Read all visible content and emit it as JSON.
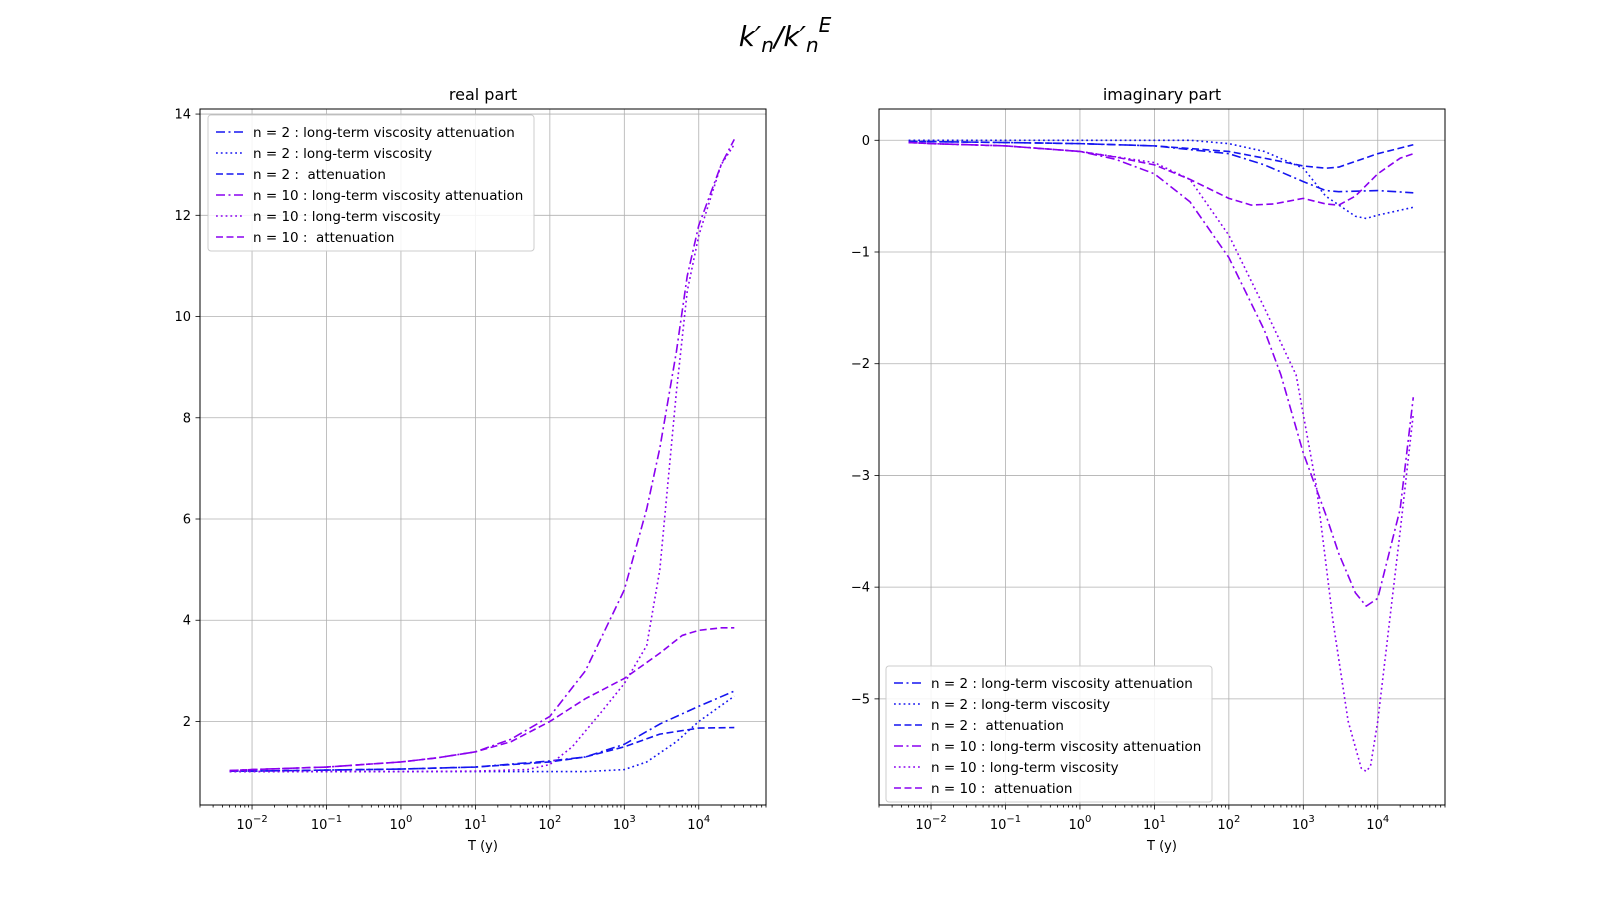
{
  "figure": {
    "suptitle_main": "k′",
    "suptitle_sub": "n",
    "suptitle_sep": "/k′",
    "suptitle_sub2": "n",
    "suptitle_sup": "E"
  },
  "colors": {
    "n2": "#1515f0",
    "n10": "#8a00f0"
  },
  "chart_data": [
    {
      "type": "line",
      "title": "real part",
      "xlabel": "T (y)",
      "ylabel": "",
      "xscale": "log",
      "xlim": [
        0.002,
        80000
      ],
      "ylim": [
        0.35,
        14.1
      ],
      "xticks": [
        {
          "value": 0.01,
          "base": "10",
          "exp": "−2"
        },
        {
          "value": 0.1,
          "base": "10",
          "exp": "−1"
        },
        {
          "value": 1,
          "base": "10",
          "exp": "0"
        },
        {
          "value": 10,
          "base": "10",
          "exp": "1"
        },
        {
          "value": 100,
          "base": "10",
          "exp": "2"
        },
        {
          "value": 1000,
          "base": "10",
          "exp": "3"
        },
        {
          "value": 10000,
          "base": "10",
          "exp": "4"
        }
      ],
      "yticks": [
        {
          "value": 2,
          "label": "2"
        },
        {
          "value": 4,
          "label": "4"
        },
        {
          "value": 6,
          "label": "6"
        },
        {
          "value": 8,
          "label": "8"
        },
        {
          "value": 10,
          "label": "10"
        },
        {
          "value": 12,
          "label": "12"
        },
        {
          "value": 14,
          "label": "14"
        }
      ],
      "grid": true,
      "legend_position": "upper-left",
      "series": [
        {
          "name": "n = 2 : long-term viscosity attenuation",
          "color": "n2",
          "dash": "dashdot",
          "x": [
            0.005,
            0.01,
            0.1,
            1,
            10,
            100,
            300,
            1000,
            3000,
            10000,
            30000
          ],
          "y": [
            1.02,
            1.02,
            1.04,
            1.06,
            1.1,
            1.22,
            1.3,
            1.55,
            1.95,
            2.3,
            2.6
          ]
        },
        {
          "name": "n = 2 : long-term viscosity",
          "color": "n2",
          "dash": "dotted",
          "x": [
            0.005,
            0.01,
            0.1,
            1,
            10,
            100,
            300,
            1000,
            2000,
            5000,
            10000,
            30000
          ],
          "y": [
            1.01,
            1.01,
            1.01,
            1.01,
            1.01,
            1.01,
            1.01,
            1.05,
            1.2,
            1.6,
            2.0,
            2.5
          ]
        },
        {
          "name": "n = 2 :  attenuation",
          "color": "n2",
          "dash": "dashed",
          "x": [
            0.005,
            0.01,
            0.1,
            1,
            10,
            100,
            300,
            1000,
            3000,
            10000,
            30000
          ],
          "y": [
            1.02,
            1.02,
            1.04,
            1.06,
            1.1,
            1.2,
            1.3,
            1.5,
            1.75,
            1.87,
            1.88
          ]
        },
        {
          "name": "n = 10 : long-term viscosity attenuation",
          "color": "n10",
          "dash": "dashdot",
          "x": [
            0.005,
            0.01,
            0.1,
            1,
            3,
            10,
            30,
            100,
            300,
            1000,
            2000,
            3000,
            5000,
            7000,
            10000,
            20000,
            30000
          ],
          "y": [
            1.03,
            1.05,
            1.1,
            1.2,
            1.28,
            1.4,
            1.65,
            2.1,
            3.0,
            4.6,
            6.2,
            7.4,
            9.3,
            10.8,
            11.8,
            13.0,
            13.5
          ]
        },
        {
          "name": "n = 10 : long-term viscosity",
          "color": "n10",
          "dash": "dotted",
          "x": [
            0.005,
            0.01,
            0.1,
            1,
            10,
            50,
            100,
            200,
            500,
            1000,
            2000,
            3000,
            5000,
            7000,
            10000,
            20000,
            30000
          ],
          "y": [
            1.01,
            1.01,
            1.01,
            1.01,
            1.02,
            1.05,
            1.15,
            1.5,
            2.2,
            2.75,
            3.5,
            5.0,
            8.5,
            10.5,
            11.6,
            13.0,
            13.4
          ]
        },
        {
          "name": "n = 10 :  attenuation",
          "color": "n10",
          "dash": "dashed",
          "x": [
            0.005,
            0.01,
            0.1,
            1,
            3,
            10,
            30,
            100,
            300,
            1000,
            3000,
            6000,
            10000,
            20000,
            30000
          ],
          "y": [
            1.03,
            1.05,
            1.1,
            1.2,
            1.28,
            1.4,
            1.6,
            2.0,
            2.45,
            2.85,
            3.35,
            3.7,
            3.8,
            3.85,
            3.85
          ]
        }
      ]
    },
    {
      "type": "line",
      "title": "imaginary part",
      "xlabel": "T (y)",
      "ylabel": "",
      "xscale": "log",
      "xlim": [
        0.002,
        80000
      ],
      "ylim": [
        -5.95,
        0.28
      ],
      "xticks": [
        {
          "value": 0.01,
          "base": "10",
          "exp": "−2"
        },
        {
          "value": 0.1,
          "base": "10",
          "exp": "−1"
        },
        {
          "value": 1,
          "base": "10",
          "exp": "0"
        },
        {
          "value": 10,
          "base": "10",
          "exp": "1"
        },
        {
          "value": 100,
          "base": "10",
          "exp": "2"
        },
        {
          "value": 1000,
          "base": "10",
          "exp": "3"
        },
        {
          "value": 10000,
          "base": "10",
          "exp": "4"
        }
      ],
      "yticks": [
        {
          "value": 0,
          "label": "0"
        },
        {
          "value": -1,
          "label": "−1"
        },
        {
          "value": -2,
          "label": "−2"
        },
        {
          "value": -3,
          "label": "−3"
        },
        {
          "value": -4,
          "label": "−4"
        },
        {
          "value": -5,
          "label": "−5"
        }
      ],
      "grid": true,
      "legend_position": "lower-left",
      "series": [
        {
          "name": "n = 2 : long-term viscosity attenuation",
          "color": "n2",
          "dash": "dashdot",
          "x": [
            0.005,
            0.1,
            1,
            10,
            100,
            300,
            1000,
            2000,
            3000,
            10000,
            30000
          ],
          "y": [
            -0.01,
            -0.02,
            -0.03,
            -0.05,
            -0.12,
            -0.22,
            -0.37,
            -0.45,
            -0.46,
            -0.45,
            -0.47
          ]
        },
        {
          "name": "n = 2 : long-term viscosity",
          "color": "n2",
          "dash": "dotted",
          "x": [
            0.005,
            0.1,
            1,
            10,
            30,
            100,
            300,
            1000,
            2000,
            5000,
            7000,
            10000,
            30000
          ],
          "y": [
            0.0,
            0.0,
            0.0,
            0.0,
            0.0,
            -0.03,
            -0.1,
            -0.25,
            -0.5,
            -0.68,
            -0.7,
            -0.67,
            -0.6
          ]
        },
        {
          "name": "n = 2 :  attenuation",
          "color": "n2",
          "dash": "dashed",
          "x": [
            0.005,
            0.1,
            1,
            10,
            100,
            300,
            1000,
            2000,
            3000,
            10000,
            30000
          ],
          "y": [
            -0.01,
            -0.02,
            -0.03,
            -0.05,
            -0.1,
            -0.16,
            -0.23,
            -0.25,
            -0.24,
            -0.12,
            -0.04
          ]
        },
        {
          "name": "n = 10 : long-term viscosity attenuation",
          "color": "n10",
          "dash": "dashdot",
          "x": [
            0.005,
            0.01,
            0.1,
            1,
            3,
            10,
            30,
            100,
            300,
            500,
            1000,
            2000,
            3000,
            5000,
            7000,
            10000,
            20000,
            30000
          ],
          "y": [
            -0.02,
            -0.03,
            -0.05,
            -0.1,
            -0.17,
            -0.3,
            -0.55,
            -1.05,
            -1.7,
            -2.1,
            -2.8,
            -3.35,
            -3.7,
            -4.05,
            -4.17,
            -4.1,
            -3.3,
            -2.3
          ]
        },
        {
          "name": "n = 10 : long-term viscosity",
          "color": "n10",
          "dash": "dotted",
          "x": [
            0.005,
            0.01,
            0.1,
            1,
            10,
            30,
            100,
            300,
            800,
            1500,
            2500,
            4000,
            6000,
            7000,
            8000,
            10000,
            20000,
            30000
          ],
          "y": [
            -0.02,
            -0.03,
            -0.05,
            -0.1,
            -0.2,
            -0.35,
            -0.85,
            -1.5,
            -2.1,
            -3.1,
            -4.3,
            -5.2,
            -5.62,
            -5.65,
            -5.6,
            -5.2,
            -3.5,
            -2.45
          ]
        },
        {
          "name": "n = 10 :  attenuation",
          "color": "n10",
          "dash": "dashed",
          "x": [
            0.005,
            0.01,
            0.1,
            1,
            3,
            10,
            30,
            100,
            200,
            400,
            1000,
            2000,
            3000,
            5000,
            10000,
            20000,
            30000
          ],
          "y": [
            -0.02,
            -0.03,
            -0.05,
            -0.1,
            -0.15,
            -0.22,
            -0.35,
            -0.52,
            -0.58,
            -0.57,
            -0.52,
            -0.57,
            -0.58,
            -0.5,
            -0.3,
            -0.16,
            -0.12
          ]
        }
      ]
    }
  ]
}
